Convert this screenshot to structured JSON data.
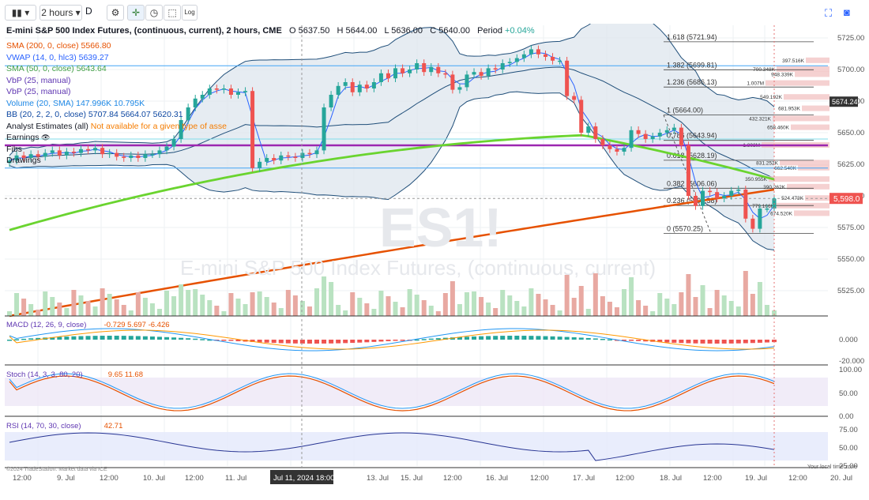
{
  "toolbar": {
    "interval": "2 hours",
    "style_label": "D",
    "log_label": "Log"
  },
  "header": {
    "title": "E-mini S&P 500 Index Futures, (continuous, current), 2 hours, CME",
    "open_label": "O",
    "open": "5637.50",
    "high_label": "H",
    "high": "5644.00",
    "low_label": "L",
    "low": "5636.00",
    "close_label": "C",
    "close": "5640.00",
    "period_label": "Period",
    "period": "+0.04%"
  },
  "legend": [
    {
      "label": "SMA (200, 0, close)",
      "value": "5566.80",
      "color": "#e65100"
    },
    {
      "label": "VWAP (14, 0, hlc3)",
      "value": "5639.27",
      "color": "#2962ff"
    },
    {
      "label": "SMA (50, 0, close)",
      "value": "5643.64",
      "color": "#43a047"
    },
    {
      "label": "VbP (25, manual)",
      "value": "",
      "color": "#5e35b1"
    },
    {
      "label": "VbP (25, manual)",
      "value": "",
      "color": "#5e35b1"
    },
    {
      "label": "Volume (20, SMA)",
      "value": "147.996K 10.795K",
      "color": "#1e88e5"
    },
    {
      "label": "BB (20, 2, 2, 0, close)",
      "value": "5707.84 5664.07 5620.31",
      "color": "#0d47a1"
    },
    {
      "label": "Analyst Estimates (all)",
      "value": "Not available for a given type of asse",
      "color": "#131722"
    },
    {
      "label": "Earnings",
      "value": "",
      "color": "#131722"
    },
    {
      "label": "Fibs",
      "value": "",
      "color": "#131722"
    },
    {
      "label": "Drawings",
      "value": "",
      "color": "#131722"
    }
  ],
  "watermark": {
    "symbol": "ES1!",
    "name": "E-mini S&P 500 Index Futures, (continuous, current)"
  },
  "colors": {
    "up": "#26a69a",
    "down": "#ef5350",
    "sma200": "#e65100",
    "sma50": "#6ad42f",
    "vwap": "#2962ff",
    "bb": "#1f4e79",
    "fib": "#9c27b0",
    "price_tag": "#ef5350"
  },
  "price_tag": "5,598.0",
  "bb_tag": "5674.24",
  "x_axis": {
    "labels": [
      "12:00",
      "9. Jul",
      "12:00",
      "10. Jul",
      "12:00",
      "11. Jul",
      "Jul 11, 2024 18:00",
      "13. Jul",
      "15. Jul",
      "12:00",
      "16. Jul",
      "12:00",
      "17. Jul",
      "12:00",
      "18. Jul",
      "12:00",
      "19. Jul",
      "12:00",
      "20. Jul"
    ]
  },
  "footer": {
    "left": "©2024 TradeStation. Market data via ICE",
    "right": "Your local time zone"
  },
  "panes": {
    "macd": {
      "label": "MACD (12, 26, 9, close)",
      "values": "-0.729 5.697 -6.426",
      "ticks": [
        "0.000",
        "-20.000"
      ]
    },
    "stoch": {
      "label": "Stoch (14, 3, 3, 80, 20)",
      "values": "9.65 11.68",
      "ticks": [
        "100.00",
        "50.00",
        "0.00"
      ]
    },
    "rsi": {
      "label": "RSI (14, 70, 30, close)",
      "values": "42.71",
      "ticks": [
        "75.00",
        "50.00",
        "25.00"
      ]
    }
  },
  "chart_data": [
    {
      "type": "candlestick",
      "title": "E-mini S&P 500 Index Futures, (continuous, current), 2 hours, CME",
      "ylim": [
        5505,
        5735
      ],
      "yticks": [
        "5725.00",
        "5700.00",
        "5675.00",
        "5650.00",
        "5625.00",
        "5600.00",
        "5575.00",
        "5550.00",
        "5525.00"
      ],
      "x": [
        "12:00",
        "9. Jul",
        "12:00",
        "10. Jul",
        "12:00",
        "11. Jul",
        "12:00",
        "13. Jul",
        "15. Jul",
        "12:00",
        "16. Jul",
        "12:00",
        "17. Jul",
        "12:00",
        "18. Jul",
        "12:00",
        "19. Jul",
        "12:00",
        "20. Jul"
      ],
      "closes": [
        5628,
        5632,
        5630,
        5633,
        5631,
        5634,
        5636,
        5632,
        5635,
        5634,
        5637,
        5636,
        5638,
        5633,
        5634,
        5631,
        5630,
        5632,
        5630,
        5633,
        5633,
        5636,
        5639,
        5645,
        5660,
        5670,
        5677,
        5680,
        5685,
        5684,
        5685,
        5680,
        5682,
        5683,
        5622,
        5627,
        5630,
        5628,
        5632,
        5631,
        5630,
        5634,
        5633,
        5636,
        5670,
        5680,
        5687,
        5690,
        5682,
        5688,
        5685,
        5690,
        5697,
        5693,
        5701,
        5697,
        5700,
        5705,
        5698,
        5702,
        5697,
        5696,
        5684,
        5686,
        5696,
        5698,
        5695,
        5701,
        5700,
        5705,
        5706,
        5709,
        5712,
        5716,
        5712,
        5710,
        5707,
        5707,
        5679,
        5676,
        5650,
        5655,
        5645,
        5640,
        5637,
        5635,
        5638,
        5652,
        5649,
        5645,
        5647,
        5650,
        5652,
        5654,
        5640,
        5600,
        5592,
        5604,
        5603,
        5598,
        5600,
        5604,
        5605,
        5582,
        5574,
        5590,
        5590,
        5598
      ],
      "fib_levels": [
        {
          "label": "1.618 (5721.94)",
          "value": 5721.94
        },
        {
          "label": "1.382 (5699.81)",
          "value": 5699.81
        },
        {
          "label": "1.236 (5686.13)",
          "value": 5686.13
        },
        {
          "label": "1 (5664.00)",
          "value": 5664.0
        },
        {
          "label": "0.786 (5643.94)",
          "value": 5643.94
        },
        {
          "label": "0.618 (5628.19)",
          "value": 5628.19
        },
        {
          "label": "0.382 (5606.06)",
          "value": 5606.06
        },
        {
          "label": "0.236 (5592.38)",
          "value": 5592.38
        },
        {
          "label": "0 (5570.25)",
          "value": 5570.25
        }
      ],
      "volume_profile": [
        {
          "label": "397.516K",
          "price": 5707
        },
        {
          "label": "700.348K",
          "price": 5700
        },
        {
          "label": "948.339K",
          "price": 5696
        },
        {
          "label": "1.007M",
          "price": 5689
        },
        {
          "label": "549.192K",
          "price": 5678
        },
        {
          "label": "681.953K",
          "price": 5669
        },
        {
          "label": "432.321K",
          "price": 5661
        },
        {
          "label": "658.460K",
          "price": 5654
        },
        {
          "label": "1.803M",
          "price": 5640
        },
        {
          "label": "831.252K",
          "price": 5626
        },
        {
          "label": "662.540K",
          "price": 5622
        },
        {
          "label": "350.955K",
          "price": 5613
        },
        {
          "label": "390.262K",
          "price": 5607
        },
        {
          "label": "524.473K",
          "price": 5598
        },
        {
          "label": "779.166K",
          "price": 5592
        },
        {
          "label": "674.520K",
          "price": 5586
        }
      ]
    }
  ]
}
